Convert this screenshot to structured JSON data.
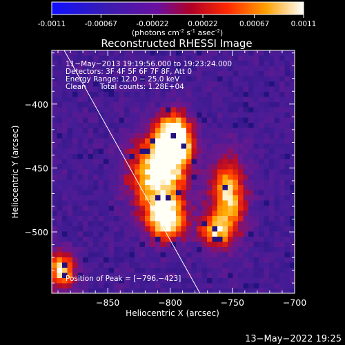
{
  "colorbar": {
    "ticks": [
      "-0.0011",
      "-0.00067",
      "-0.00022",
      "0.00022",
      "0.00067",
      "0.0011"
    ],
    "tick_values": [
      -0.0011,
      -0.00067,
      -0.00022,
      0.00022,
      0.00067,
      0.0011
    ],
    "range": [
      -0.0011,
      0.0011
    ],
    "units_prefix": "(photons cm",
    "units_exp1": "-2",
    "units_s": " s",
    "units_exp2": "-1",
    "units_asec": " asec",
    "units_exp3": "-2",
    "units_suffix": ")"
  },
  "chart_data": {
    "type": "heatmap",
    "title": "Reconstructed RHESSI Image",
    "xlabel": "Heliocentric X (arcsec)",
    "ylabel": "Heliocentric Y (arcsec)",
    "xlim": [
      -895,
      -700
    ],
    "ylim": [
      -548,
      -358
    ],
    "xticks": [
      -850,
      -800,
      -750,
      -700
    ],
    "xtick_labels": [
      "−850",
      "−800",
      "−750",
      "−700"
    ],
    "yticks": [
      -400,
      -450,
      -500
    ],
    "ytick_labels": [
      "−400",
      "−450",
      "−500"
    ],
    "colormap": "blue-purple-red-yellow-white (RHESSI)",
    "peak": {
      "x": -796,
      "y": -423
    },
    "limb_line": {
      "from": {
        "x": -885,
        "y": -358
      },
      "to": {
        "x": -776,
        "y": -548
      },
      "color": "#ffffff"
    },
    "sources": [
      {
        "x": -797,
        "y": -428,
        "sx": 10,
        "sy": 14,
        "amp": 1.0
      },
      {
        "x": -810,
        "y": -455,
        "sx": 16,
        "sy": 20,
        "amp": 0.78
      },
      {
        "x": -803,
        "y": -490,
        "sx": 11,
        "sy": 12,
        "amp": 0.78
      },
      {
        "x": -753,
        "y": -472,
        "sx": 10,
        "sy": 22,
        "amp": 0.68
      },
      {
        "x": -765,
        "y": -500,
        "sx": 9,
        "sy": 9,
        "amp": 0.55
      },
      {
        "x": -887,
        "y": -530,
        "sx": 8,
        "sy": 10,
        "amp": 0.72
      }
    ]
  },
  "annotations": {
    "time_range": "11−May−2013 19:19:56.000 to 19:23:24.000",
    "detectors": "Detectors: 3F 4F 5F 6F 7F 8F, Att 0",
    "energy": "Energy Range: 12.0 − 25.0 keV",
    "clean": "Clean      Total counts: 1.28E+04",
    "peak": "Position of Peak = [−796,−423]"
  },
  "footer": {
    "timestamp": "13−May−2022 19:25"
  }
}
